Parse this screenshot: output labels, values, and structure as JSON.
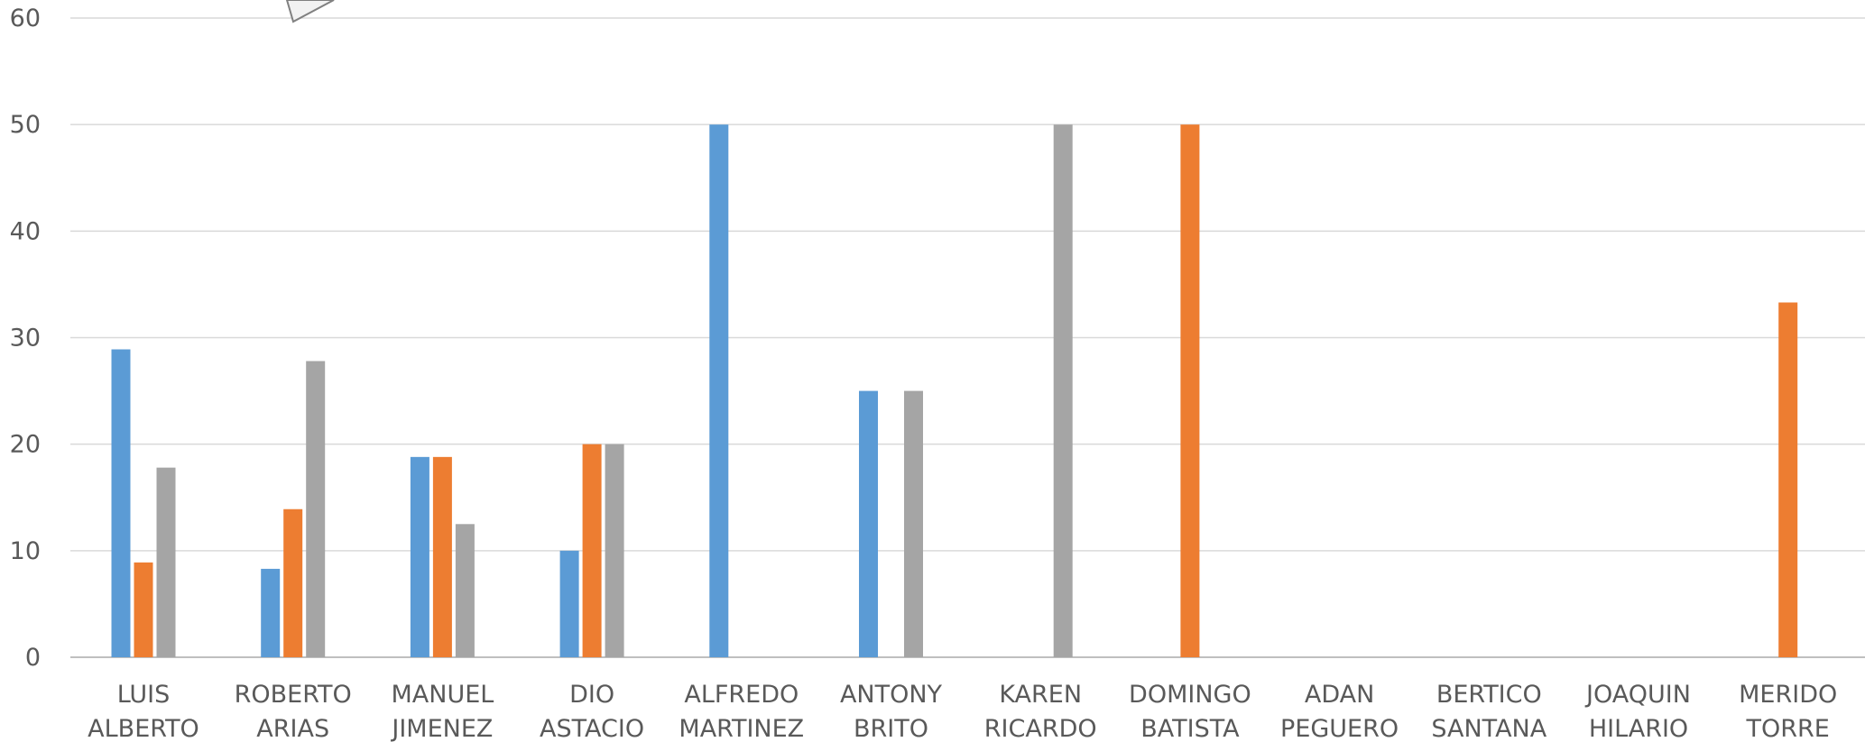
{
  "chart_data": {
    "type": "bar",
    "ylim": [
      0,
      60
    ],
    "yticks": [
      "0",
      "10",
      "20",
      "30",
      "40",
      "50",
      "60"
    ],
    "grid": true,
    "categories": [
      [
        "LUIS",
        "ALBERTO"
      ],
      [
        "ROBERTO",
        "ARIAS"
      ],
      [
        "MANUEL",
        "JIMENEZ"
      ],
      [
        "DIO",
        "ASTACIO"
      ],
      [
        "ALFREDO",
        "MARTINEZ"
      ],
      [
        "ANTONY",
        "BRITO"
      ],
      [
        "KAREN",
        "RICARDO"
      ],
      [
        "DOMINGO",
        "BATISTA"
      ],
      [
        "ADAN",
        "PEGUERO"
      ],
      [
        "BERTICO",
        "SANTANA"
      ],
      [
        "JOAQUIN",
        "HILARIO"
      ],
      [
        "MERIDO",
        "TORRE"
      ]
    ],
    "series": [
      {
        "color": "#5B9BD5",
        "values": [
          28.9,
          8.3,
          18.8,
          10,
          50,
          25,
          0,
          0,
          0,
          0,
          0,
          0
        ]
      },
      {
        "color": "#ED7D31",
        "values": [
          8.9,
          13.9,
          18.8,
          20,
          0,
          0,
          0,
          50,
          0,
          0,
          0,
          33.3
        ]
      },
      {
        "color": "#A5A5A5",
        "values": [
          17.8,
          27.8,
          12.5,
          20,
          0,
          25,
          50,
          0,
          0,
          0,
          0,
          0
        ]
      }
    ]
  }
}
